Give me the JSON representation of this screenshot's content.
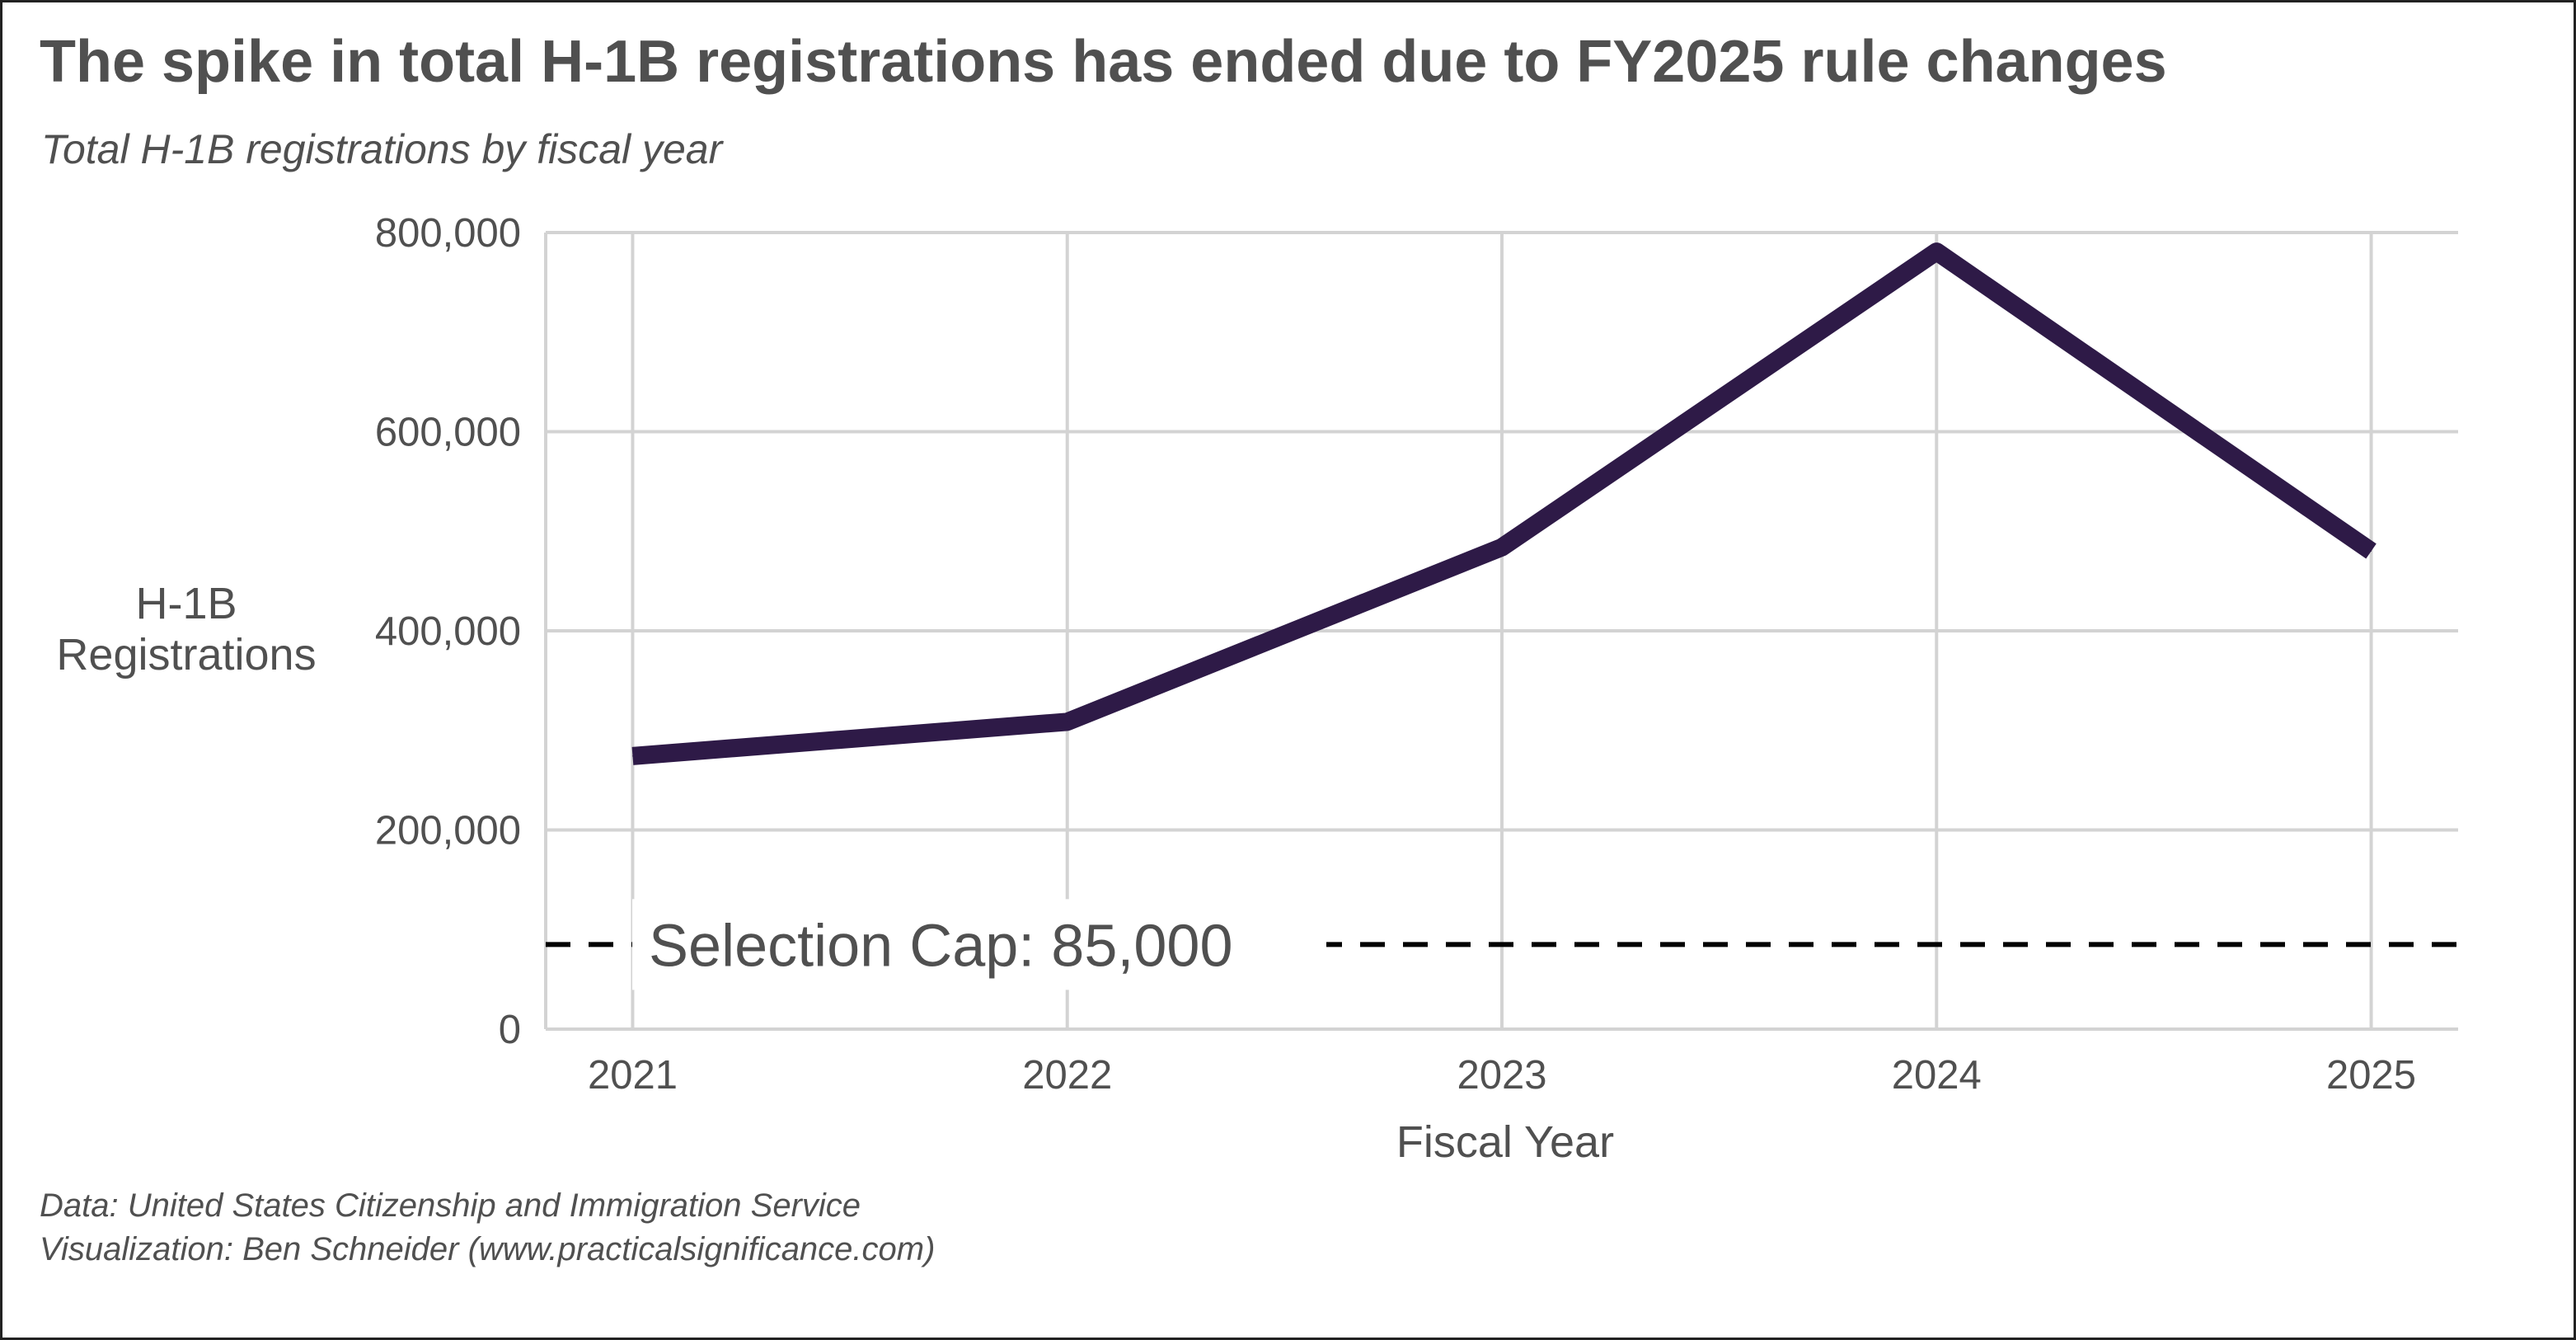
{
  "title": "The spike in total H-1B registrations has ended due to FY2025 rule changes",
  "subtitle": "Total H-1B registrations by fiscal year",
  "caption": {
    "line1": "Data: United States Citizenship and Immigration Service",
    "line2": "Visualization: Ben Schneider (www.practicalsignificance.com)"
  },
  "chart_data": {
    "type": "line",
    "title": "The spike in total H-1B registrations has ended due to FY2025 rule changes",
    "subtitle": "Total H-1B registrations by fiscal year",
    "xlabel": "Fiscal Year",
    "ylabel_lines": [
      "H-1B",
      "Registrations"
    ],
    "x": [
      2021,
      2022,
      2023,
      2024,
      2025
    ],
    "x_tick_labels": [
      "2021",
      "2022",
      "2023",
      "2024",
      "2025"
    ],
    "series": [
      {
        "values": [
          274237,
          308613,
          483927,
          780884,
          479953
        ],
        "color": "#2e1a47"
      }
    ],
    "xlim": [
      2020.8,
      2025.2
    ],
    "ylim": [
      0,
      800000
    ],
    "y_ticks": [
      0,
      200000,
      400000,
      600000,
      800000
    ],
    "y_tick_labels": [
      "0",
      "200,000",
      "400,000",
      "600,000",
      "800,000"
    ],
    "reference_line": {
      "value": 85000,
      "label": "Selection Cap: 85,000",
      "style": "dashed",
      "color": "#000000"
    },
    "grid": true,
    "gridline_color": "#d3d3d3"
  }
}
